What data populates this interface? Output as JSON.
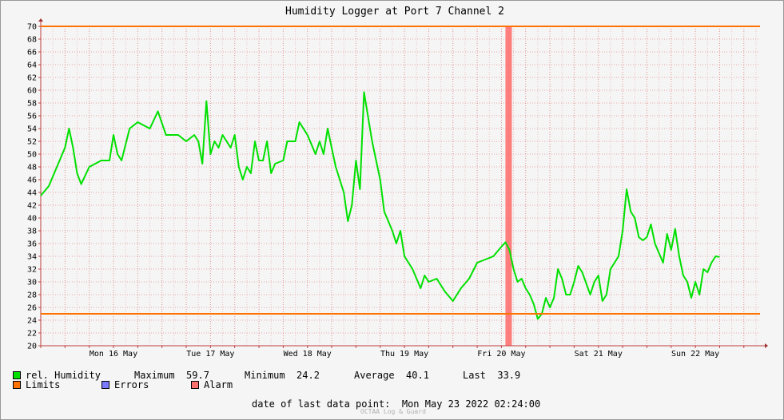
{
  "chart_data": {
    "type": "line",
    "title": "Humidity Logger at Port 7 Channel 2",
    "ylim": [
      20,
      70
    ],
    "y_ticks": [
      20,
      22,
      24,
      26,
      28,
      30,
      32,
      34,
      36,
      38,
      40,
      42,
      44,
      46,
      48,
      50,
      52,
      54,
      56,
      58,
      60,
      62,
      64,
      66,
      68,
      70
    ],
    "x_day_labels": [
      "Mon 16 May",
      "Tue 17 May",
      "Wed 18 May",
      "Thu 19 May",
      "Fri 20 May",
      "Sat 21 May",
      "Sun 22 May"
    ],
    "x_start": "2022-05-15 18:00",
    "x_end": "2022-05-23 04:00",
    "grid": true,
    "limits": [
      70,
      25
    ],
    "alarm_band": [
      "2022-05-20 13:00",
      "2022-05-20 14:00"
    ],
    "series": [
      {
        "name": "rel. Humidity",
        "color": "#00e000",
        "points": [
          [
            "2022-05-15 18:00",
            43.5
          ],
          [
            "2022-05-15 20:00",
            45.0
          ],
          [
            "2022-05-15 22:00",
            48.0
          ],
          [
            "2022-05-16 00:00",
            51.0
          ],
          [
            "2022-05-16 01:00",
            54.0
          ],
          [
            "2022-05-16 02:00",
            51.0
          ],
          [
            "2022-05-16 03:00",
            47.0
          ],
          [
            "2022-05-16 04:00",
            45.3
          ],
          [
            "2022-05-16 06:00",
            48.0
          ],
          [
            "2022-05-16 09:00",
            49.0
          ],
          [
            "2022-05-16 11:00",
            49.0
          ],
          [
            "2022-05-16 12:00",
            53.0
          ],
          [
            "2022-05-16 13:00",
            50.0
          ],
          [
            "2022-05-16 14:00",
            49.0
          ],
          [
            "2022-05-16 16:00",
            54.0
          ],
          [
            "2022-05-16 18:00",
            55.0
          ],
          [
            "2022-05-16 21:00",
            54.0
          ],
          [
            "2022-05-16 23:00",
            56.7
          ],
          [
            "2022-05-17 01:00",
            53.0
          ],
          [
            "2022-05-17 04:00",
            53.0
          ],
          [
            "2022-05-17 06:00",
            52.0
          ],
          [
            "2022-05-17 08:00",
            53.0
          ],
          [
            "2022-05-17 09:00",
            52.0
          ],
          [
            "2022-05-17 10:00",
            48.5
          ],
          [
            "2022-05-17 11:00",
            58.3
          ],
          [
            "2022-05-17 12:00",
            50.0
          ],
          [
            "2022-05-17 13:00",
            52.0
          ],
          [
            "2022-05-17 14:00",
            51.0
          ],
          [
            "2022-05-17 15:00",
            53.0
          ],
          [
            "2022-05-17 17:00",
            51.0
          ],
          [
            "2022-05-17 18:00",
            53.0
          ],
          [
            "2022-05-17 19:00",
            48.0
          ],
          [
            "2022-05-17 20:00",
            46.0
          ],
          [
            "2022-05-17 21:00",
            48.0
          ],
          [
            "2022-05-17 22:00",
            47.0
          ],
          [
            "2022-05-17 23:00",
            52.0
          ],
          [
            "2022-05-18 00:00",
            49.0
          ],
          [
            "2022-05-18 01:00",
            49.0
          ],
          [
            "2022-05-18 02:00",
            52.0
          ],
          [
            "2022-05-18 03:00",
            47.0
          ],
          [
            "2022-05-18 04:00",
            48.5
          ],
          [
            "2022-05-18 06:00",
            49.0
          ],
          [
            "2022-05-18 07:00",
            52.0
          ],
          [
            "2022-05-18 09:00",
            52.0
          ],
          [
            "2022-05-18 10:00",
            55.0
          ],
          [
            "2022-05-18 12:00",
            53.0
          ],
          [
            "2022-05-18 14:00",
            50.0
          ],
          [
            "2022-05-18 15:00",
            52.0
          ],
          [
            "2022-05-18 16:00",
            50.0
          ],
          [
            "2022-05-18 17:00",
            54.0
          ],
          [
            "2022-05-18 18:00",
            51.0
          ],
          [
            "2022-05-18 19:00",
            48.0
          ],
          [
            "2022-05-18 21:00",
            44.0
          ],
          [
            "2022-05-18 22:00",
            39.5
          ],
          [
            "2022-05-18 23:00",
            42.0
          ],
          [
            "2022-05-19 00:00",
            49.0
          ],
          [
            "2022-05-19 01:00",
            44.5
          ],
          [
            "2022-05-19 02:00",
            59.7
          ],
          [
            "2022-05-19 04:00",
            52.0
          ],
          [
            "2022-05-19 06:00",
            46.0
          ],
          [
            "2022-05-19 07:00",
            41.0
          ],
          [
            "2022-05-19 09:00",
            38.0
          ],
          [
            "2022-05-19 10:00",
            36.0
          ],
          [
            "2022-05-19 11:00",
            38.0
          ],
          [
            "2022-05-19 12:00",
            34.0
          ],
          [
            "2022-05-19 14:00",
            32.0
          ],
          [
            "2022-05-19 16:00",
            29.0
          ],
          [
            "2022-05-19 17:00",
            31.0
          ],
          [
            "2022-05-19 18:00",
            30.0
          ],
          [
            "2022-05-19 20:00",
            30.5
          ],
          [
            "2022-05-19 22:00",
            28.5
          ],
          [
            "2022-05-20 00:00",
            27.0
          ],
          [
            "2022-05-20 02:00",
            29.0
          ],
          [
            "2022-05-20 04:00",
            30.5
          ],
          [
            "2022-05-20 06:00",
            33.0
          ],
          [
            "2022-05-20 08:00",
            33.5
          ],
          [
            "2022-05-20 10:00",
            34.0
          ],
          [
            "2022-05-20 12:00",
            35.5
          ],
          [
            "2022-05-20 13:00",
            36.2
          ],
          [
            "2022-05-20 14:00",
            35.0
          ],
          [
            "2022-05-20 15:00",
            32.0
          ],
          [
            "2022-05-20 16:00",
            30.0
          ],
          [
            "2022-05-20 17:00",
            30.5
          ],
          [
            "2022-05-20 18:00",
            29.0
          ],
          [
            "2022-05-20 19:00",
            28.0
          ],
          [
            "2022-05-20 20:00",
            26.5
          ],
          [
            "2022-05-20 21:00",
            24.2
          ],
          [
            "2022-05-20 22:00",
            25.0
          ],
          [
            "2022-05-20 23:00",
            27.5
          ],
          [
            "2022-05-21 00:00",
            26.0
          ],
          [
            "2022-05-21 01:00",
            27.5
          ],
          [
            "2022-05-21 02:00",
            32.0
          ],
          [
            "2022-05-21 03:00",
            30.5
          ],
          [
            "2022-05-21 04:00",
            28.0
          ],
          [
            "2022-05-21 05:00",
            28.0
          ],
          [
            "2022-05-21 06:00",
            30.0
          ],
          [
            "2022-05-21 07:00",
            32.5
          ],
          [
            "2022-05-21 08:00",
            31.5
          ],
          [
            "2022-05-21 10:00",
            28.0
          ],
          [
            "2022-05-21 11:00",
            30.0
          ],
          [
            "2022-05-21 12:00",
            31.0
          ],
          [
            "2022-05-21 13:00",
            27.0
          ],
          [
            "2022-05-21 14:00",
            28.0
          ],
          [
            "2022-05-21 15:00",
            32.0
          ],
          [
            "2022-05-21 17:00",
            34.0
          ],
          [
            "2022-05-21 18:00",
            38.0
          ],
          [
            "2022-05-21 19:00",
            44.5
          ],
          [
            "2022-05-21 20:00",
            41.0
          ],
          [
            "2022-05-21 21:00",
            40.0
          ],
          [
            "2022-05-21 22:00",
            37.0
          ],
          [
            "2022-05-21 23:00",
            36.5
          ],
          [
            "2022-05-22 00:00",
            37.0
          ],
          [
            "2022-05-22 01:00",
            39.0
          ],
          [
            "2022-05-22 02:00",
            36.0
          ],
          [
            "2022-05-22 03:00",
            34.5
          ],
          [
            "2022-05-22 04:00",
            33.0
          ],
          [
            "2022-05-22 05:00",
            37.5
          ],
          [
            "2022-05-22 06:00",
            35.0
          ],
          [
            "2022-05-22 07:00",
            38.3
          ],
          [
            "2022-05-22 08:00",
            34.0
          ],
          [
            "2022-05-22 09:00",
            31.0
          ],
          [
            "2022-05-22 10:00",
            30.0
          ],
          [
            "2022-05-22 11:00",
            27.5
          ],
          [
            "2022-05-22 12:00",
            30.0
          ],
          [
            "2022-05-22 13:00",
            28.0
          ],
          [
            "2022-05-22 14:00",
            32.0
          ],
          [
            "2022-05-22 15:00",
            31.5
          ],
          [
            "2022-05-22 16:00",
            33.0
          ],
          [
            "2022-05-22 17:00",
            34.0
          ],
          [
            "2022-05-22 18:00",
            33.9
          ]
        ]
      }
    ]
  },
  "legend": {
    "humidity": {
      "label": "rel. Humidity",
      "color": "#00e000"
    },
    "limits": {
      "label": "Limits",
      "color": "#ff7200"
    },
    "errors": {
      "label": "Errors",
      "color": "#7a7aff"
    },
    "alarm": {
      "label": "Alarm",
      "color": "#ff7070"
    }
  },
  "stats": {
    "maximum_label": "Maximum",
    "maximum": "59.7",
    "minimum_label": "Minimum",
    "minimum": "24.2",
    "average_label": "Average",
    "average": "40.1",
    "last_label": "Last",
    "last": "33.9"
  },
  "footer": {
    "last_point_label": "date of last data point:",
    "last_point_value": "Mon May 23 2022 02:24:00",
    "watermark": "OCTAA Log & Guard"
  }
}
